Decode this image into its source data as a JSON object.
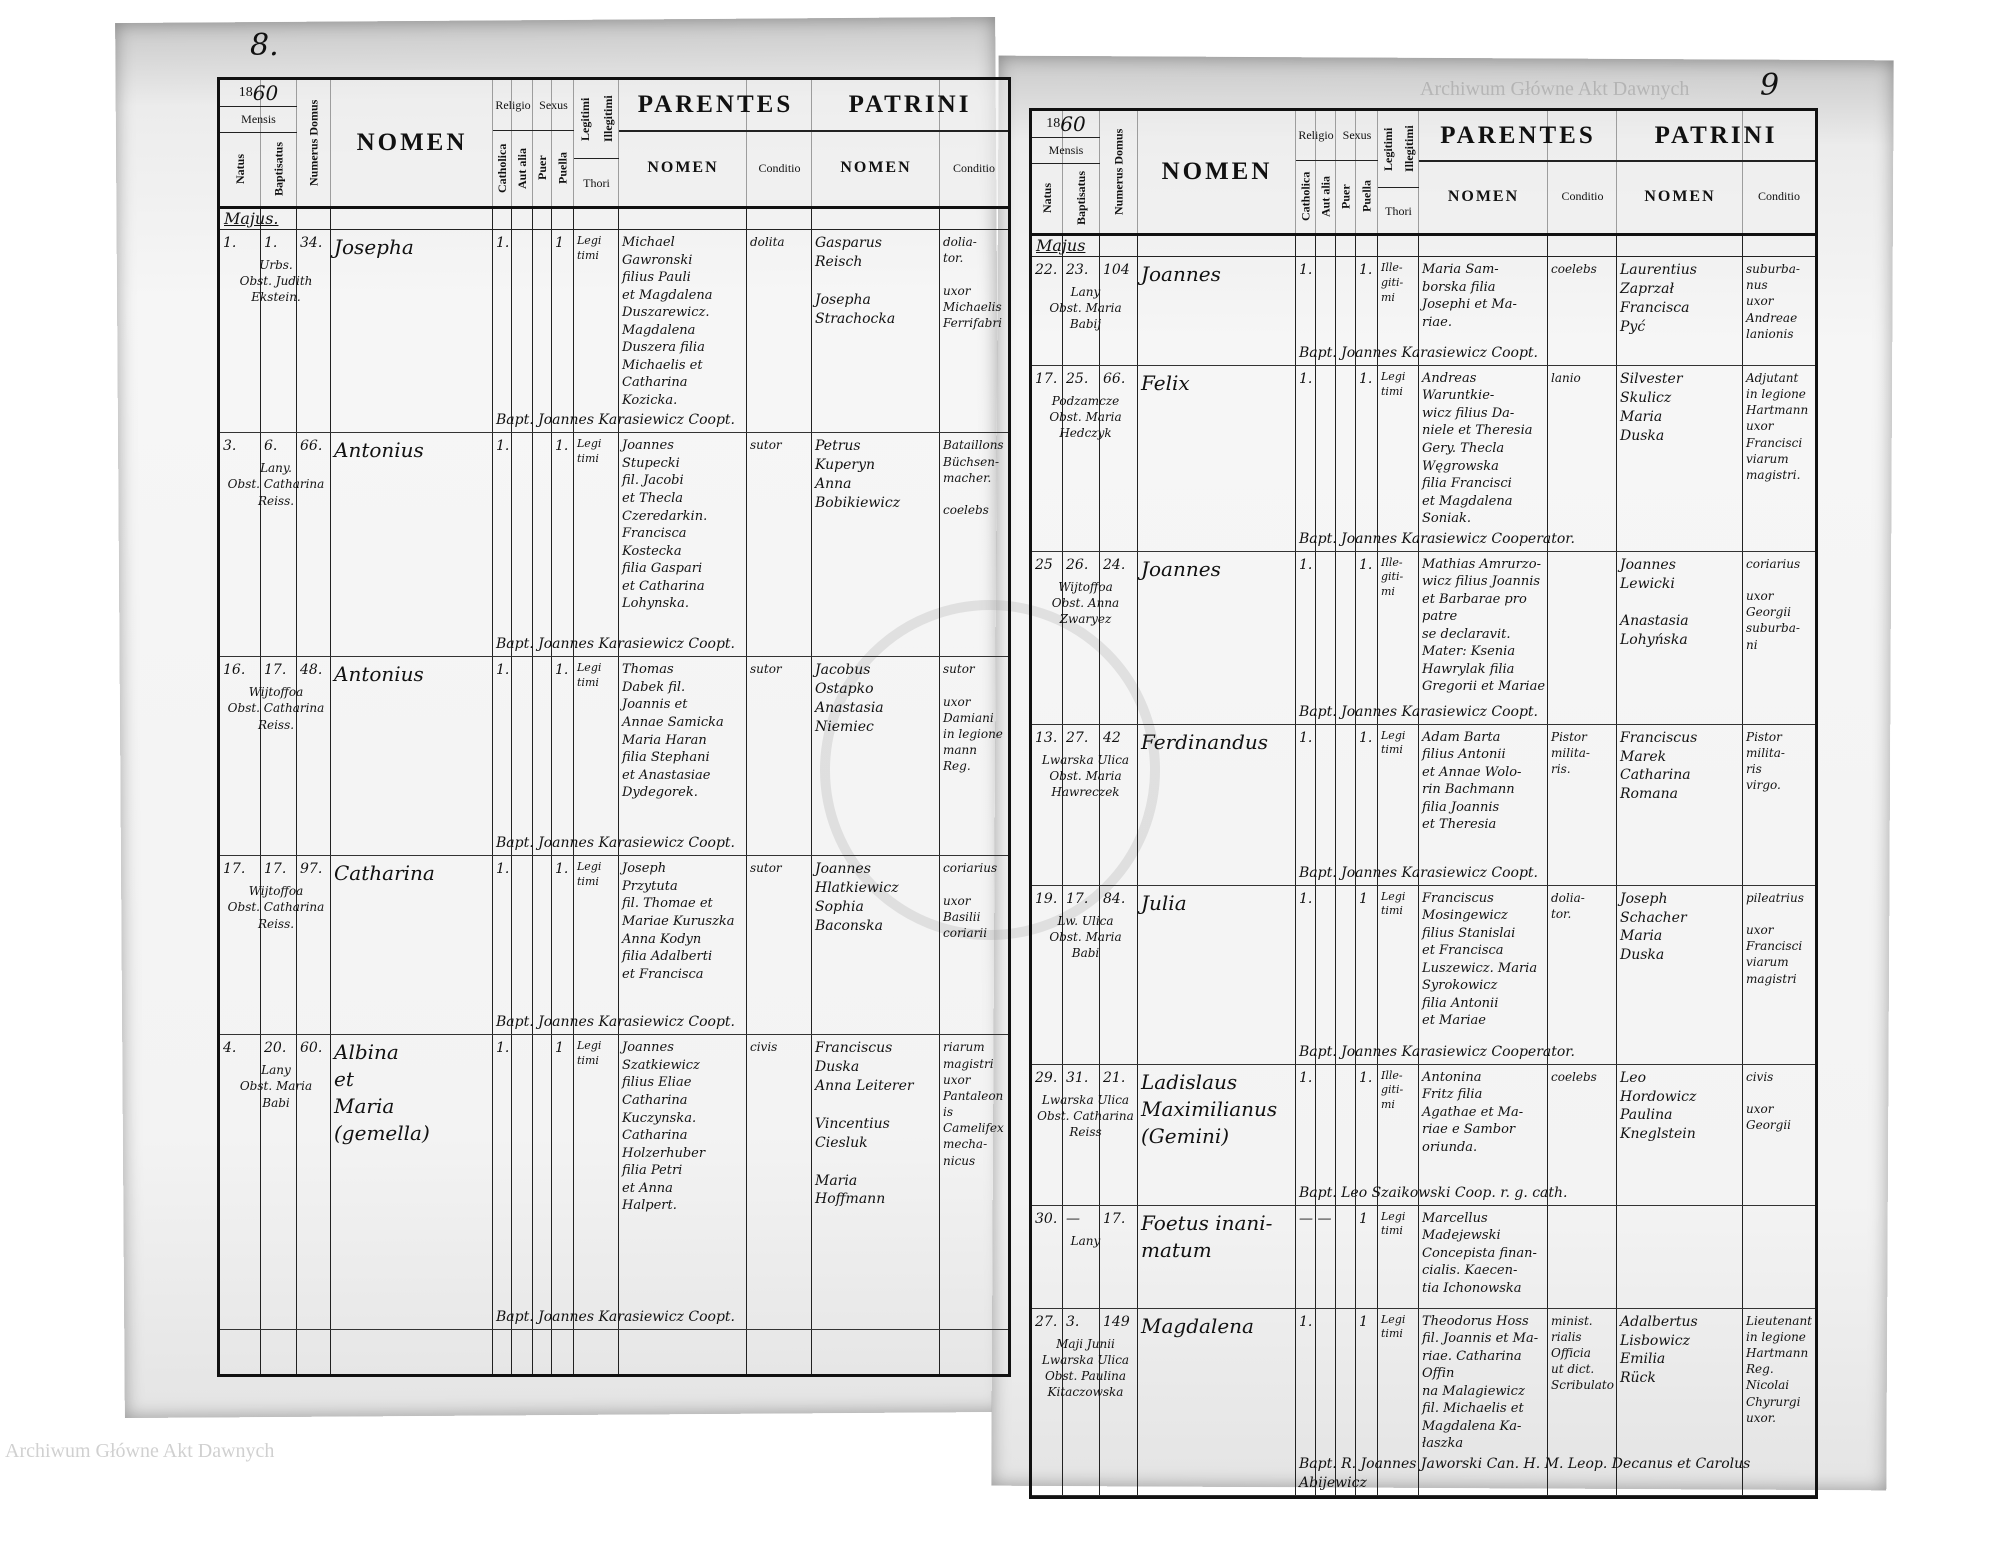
{
  "watermark": "Archiwum Główne Akt Dawnych",
  "header": {
    "year_prefix": "18",
    "year_hand": "60",
    "mensis": "Mensis",
    "natus": "Natus",
    "baptisatus": "Baptisatus",
    "numerus_domus": "Numerus Domus",
    "nomen": "NOMEN",
    "religio": "Religio",
    "catholica": "Catholica",
    "aut_alia": "Aut alia",
    "sexus": "Sexus",
    "puer": "Puer",
    "puella": "Puella",
    "legitimi": "Legitimi",
    "illegitimi": "Illegitimi",
    "thori": "Thori",
    "parentes": "PARENTES",
    "patrini": "PATRINI",
    "sub_nomen": "NOMEN",
    "conditio": "Conditio"
  },
  "left_page": {
    "page_number": "8.",
    "month": "Majus.",
    "entries": [
      {
        "natus": "1.",
        "bapt": "1.",
        "domus": "34.",
        "loc": "Urbs.\nObst. Judith\nEkstein.",
        "nomen": "Josepha",
        "rel": "1.",
        "sex": "1",
        "thori": "Legi\ntimi",
        "parents": "Michael\nGawronski\nfilius Pauli\net Magdalena\nDuszarewicz.\nMagdalena\nDuszera filia\nMichaelis et\nCatharina\nKozicka.",
        "parents_cond": "dolita",
        "patrini": "Gasparus\nReisch\n\nJosepha\nStrachocka",
        "patrini_cond": "dolia-\ntor.\n\nuxor\nMichaelis\nFerrifabri",
        "bapt_line": "Bapt. Joannes Karasiewicz Coopt."
      },
      {
        "natus": "3.",
        "bapt": "6.",
        "domus": "66.",
        "loc": "Lany.\nObst. Catharina\nReiss.",
        "nomen": "Antonius",
        "rel": "1.",
        "sex": "1.",
        "thori": "Legi\ntimi",
        "parents": "Joannes\nStupecki\nfil. Jacobi\net Thecla\nCzeredarkin.\nFrancisca\nKostecka\nfilia Gaspari\net Catharina\nLohynska.",
        "parents_cond": "sutor",
        "patrini": "Petrus\nKuperyn\nAnna\nBobikiewicz",
        "patrini_cond": "Bataillons\nBüchsen-\nmacher.\n\ncoelebs",
        "bapt_line": "Bapt. Joannes Karasiewicz Coopt."
      },
      {
        "natus": "16.",
        "bapt": "17.",
        "domus": "48.",
        "loc": "Wijtoffoa\nObst. Catharina\nReiss.",
        "nomen": "Antonius",
        "rel": "1.",
        "sex": "1.",
        "thori": "Legi\ntimi",
        "parents": "Thomas\nDabek fil.\nJoannis et\nAnnae Samicka\nMaria Haran\nfilia Stephani\net Anastasiae\nDydegorek.",
        "parents_cond": "sutor",
        "patrini": "Jacobus\nOstapko\nAnastasia\nNiemiec",
        "patrini_cond": "sutor\n\nuxor\nDamiani\nin legione\nmann Reg.",
        "bapt_line": "Bapt. Joannes Karasiewicz Coopt."
      },
      {
        "natus": "17.",
        "bapt": "17.",
        "domus": "97.",
        "loc": "Wijtoffoa\nObst. Catharina\nReiss.",
        "nomen": "Catharina",
        "rel": "1.",
        "sex": "1.",
        "thori": "Legi\ntimi",
        "parents": "Joseph\nPrzytuta\nfil. Thomae et\nMariae Kuruszka\nAnna Kodyn\nfilia Adalberti\net Francisca",
        "parents_cond": "sutor",
        "patrini": "Joannes\nHlatkiewicz\nSophia\nBaconska",
        "patrini_cond": "coriarius\n\nuxor\nBasilii\ncoriarii",
        "bapt_line": "Bapt. Joannes Karasiewicz Coopt."
      },
      {
        "natus": "4.",
        "bapt": "20.",
        "domus": "60.",
        "loc": "Lany\nObst. Maria\nBabi",
        "nomen": "Albina\net\nMaria\n(gemella)",
        "rel": "1.",
        "sex": "1",
        "thori": "Legi\ntimi",
        "parents": "Joannes\nSzatkiewicz\nfilius Eliae\nCatharina\nKuczynska.\nCatharina\nHolzerhuber\nfilia Petri\net Anna\nHalpert.",
        "parents_cond": "civis",
        "patrini": "Franciscus\nDuska\nAnna Leiterer\n\nVincentius\nCiesluk\n\nMaria\nHoffmann",
        "patrini_cond": "riarum\nmagistri\nuxor\nPantaleonis\nCamelifex\nmecha-\nnicus",
        "bapt_line": "Bapt. Joannes Karasiewicz Coopt."
      }
    ]
  },
  "right_page": {
    "page_number": "9",
    "month": "Majus",
    "entries": [
      {
        "natus": "22.",
        "bapt": "23.",
        "domus": "104",
        "loc": "Lany\nObst. Maria\nBabij",
        "nomen": "Joannes",
        "rel": "1.",
        "sex": "1.",
        "thori": "Ille-\ngiti-\nmi",
        "parents": "Maria Sam-\nborska filia\nJosephi et Ma-\nriae.",
        "parents_cond": "coelebs",
        "patrini": "Laurentius\nZaprzał\nFrancisca\nPyć",
        "patrini_cond": "suburba-\nnus\nuxor\nAndreae\nlanionis",
        "bapt_line": "Bapt. Joannes Karasiewicz Coopt."
      },
      {
        "natus": "17.",
        "bapt": "25.",
        "domus": "66.",
        "loc": "Podzamcze\nObst. Maria\nHedczyk",
        "nomen": "Felix",
        "rel": "1.",
        "sex": "1.",
        "thori": "Legi\ntimi",
        "parents": "Andreas\nWaruntkie-\nwicz filius Da-\nniele et Theresia\nGery. Thecla\nWęgrowska\nfilia Francisci\net Magdalena\nSoniak.",
        "parents_cond": "lanio",
        "patrini": "Silvester\nSkulicz\nMaria\nDuska",
        "patrini_cond": "Adjutant\nin legione\nHartmann\nuxor\nFrancisci\nviarum\nmagistri.",
        "bapt_line": "Bapt. Joannes Karasiewicz Cooperator."
      },
      {
        "natus": "25",
        "bapt": "26.",
        "domus": "24.",
        "loc": "Wijtoffoa\nObst. Anna\nZwaryez",
        "nomen": "Joannes",
        "rel": "1.",
        "sex": "1.",
        "thori": "Ille-\ngiti-\nmi",
        "parents": "Mathias Amrurzo-\nwicz filius Joannis\net Barbarae pro patre\nse declaravit.\nMater: Ksenia\nHawrylak filia\nGregorii et Mariae",
        "parents_cond": "",
        "patrini": "Joannes\nLewicki\n\nAnastasia\nLohyńska",
        "patrini_cond": "coriarius\n\nuxor\nGeorgii\nsuburba-\nni",
        "bapt_line": "Bapt. Joannes Karasiewicz Coopt."
      },
      {
        "natus": "13.",
        "bapt": "27.",
        "domus": "42",
        "loc": "Lwarska Ulica\nObst. Maria\nHawreczek",
        "nomen": "Ferdinandus",
        "rel": "1.",
        "sex": "1.",
        "thori": "Legi\ntimi",
        "parents": "Adam Barta\nfilius Antonii\net Annae Wolo-\nrin Bachmann\nfilia Joannis\net Theresia",
        "parents_cond": "Pistor\nmilita-\nris.",
        "patrini": "Franciscus\nMarek\nCatharina\nRomana",
        "patrini_cond": "Pistor\nmilita-\nris\nvirgo.",
        "bapt_line": "Bapt. Joannes Karasiewicz Coopt."
      },
      {
        "natus": "19.",
        "bapt": "17.",
        "domus": "84.",
        "loc": "Lw. Ulica\nObst. Maria\nBabi",
        "nomen": "Julia",
        "rel": "1.",
        "sex": "1",
        "thori": "Legi\ntimi",
        "parents": "Franciscus\nMosingewicz\nfilius Stanislai\net Francisca\nLuszewicz. Maria\nSyrokowicz\nfilia Antonii\net Mariae",
        "parents_cond": "dolia-\ntor.",
        "patrini": "Joseph\nSchacher\nMaria\nDuska",
        "patrini_cond": "pileatrius\n\nuxor\nFrancisci\nviarum\nmagistri",
        "bapt_line": "Bapt. Joannes Karasiewicz Cooperator."
      },
      {
        "natus": "29.",
        "bapt": "31.",
        "domus": "21.",
        "loc": "Lwarska Ulica\nObst. Catharina\nReiss",
        "nomen": "Ladislaus\nMaximilianus\n(Gemini)",
        "rel": "1.",
        "sex": "1.",
        "thori": "Ille-\ngiti-\nmi",
        "parents": "Antonina\nFritz filia\nAgathae et Ma-\nriae e Sambor\noriunda.",
        "parents_cond": "coelebs",
        "patrini": "Leo\nHordowicz\nPaulina\nKneglstein",
        "patrini_cond": "civis\n\nuxor\nGeorgii",
        "bapt_line": "Bapt. Leo Szaikowski Coop. r. g. cath."
      },
      {
        "natus": "30.",
        "bapt": "—",
        "domus": "17.",
        "loc": "Lany",
        "nomen": "Foetus inani-\nmatum",
        "rel": "— —",
        "sex": "1",
        "thori": "Legi\ntimi",
        "parents": "Marcellus\nMadejewski\nConcepista finan-\ncialis. Kaecen-\ntia Ichonowska",
        "parents_cond": "",
        "patrini": "",
        "patrini_cond": "",
        "bapt_line": ""
      },
      {
        "natus": "27.",
        "bapt": "3.",
        "domus": "149",
        "loc": "Maji Junii\nLwarska Ulica\nObst. Paulina\nKitaczowska",
        "nomen": "Magdalena",
        "rel": "1.",
        "sex": "1",
        "thori": "Legi\ntimi",
        "parents": "Theodorus Hoss\nfil. Joannis et Ma-\nriae. Catharina Offin\nna Malagiewicz\nfil. Michaelis et\nMagdalena Ka-\nłaszka",
        "parents_cond": "minist.\nrialis\nOfficia\nut dict.\nScribulato",
        "patrini": "Adalbertus\nLisbowicz\nEmilia\nRück",
        "patrini_cond": "Lieutenant\nin legione\nHartmann\nReg.\nNicolai\nChyrurgi\nuxor.",
        "bapt_line": "Bapt. R. Joannes Jaworski Can. H. M. Leop. Decanus et Carolus Abijewicz"
      }
    ]
  }
}
